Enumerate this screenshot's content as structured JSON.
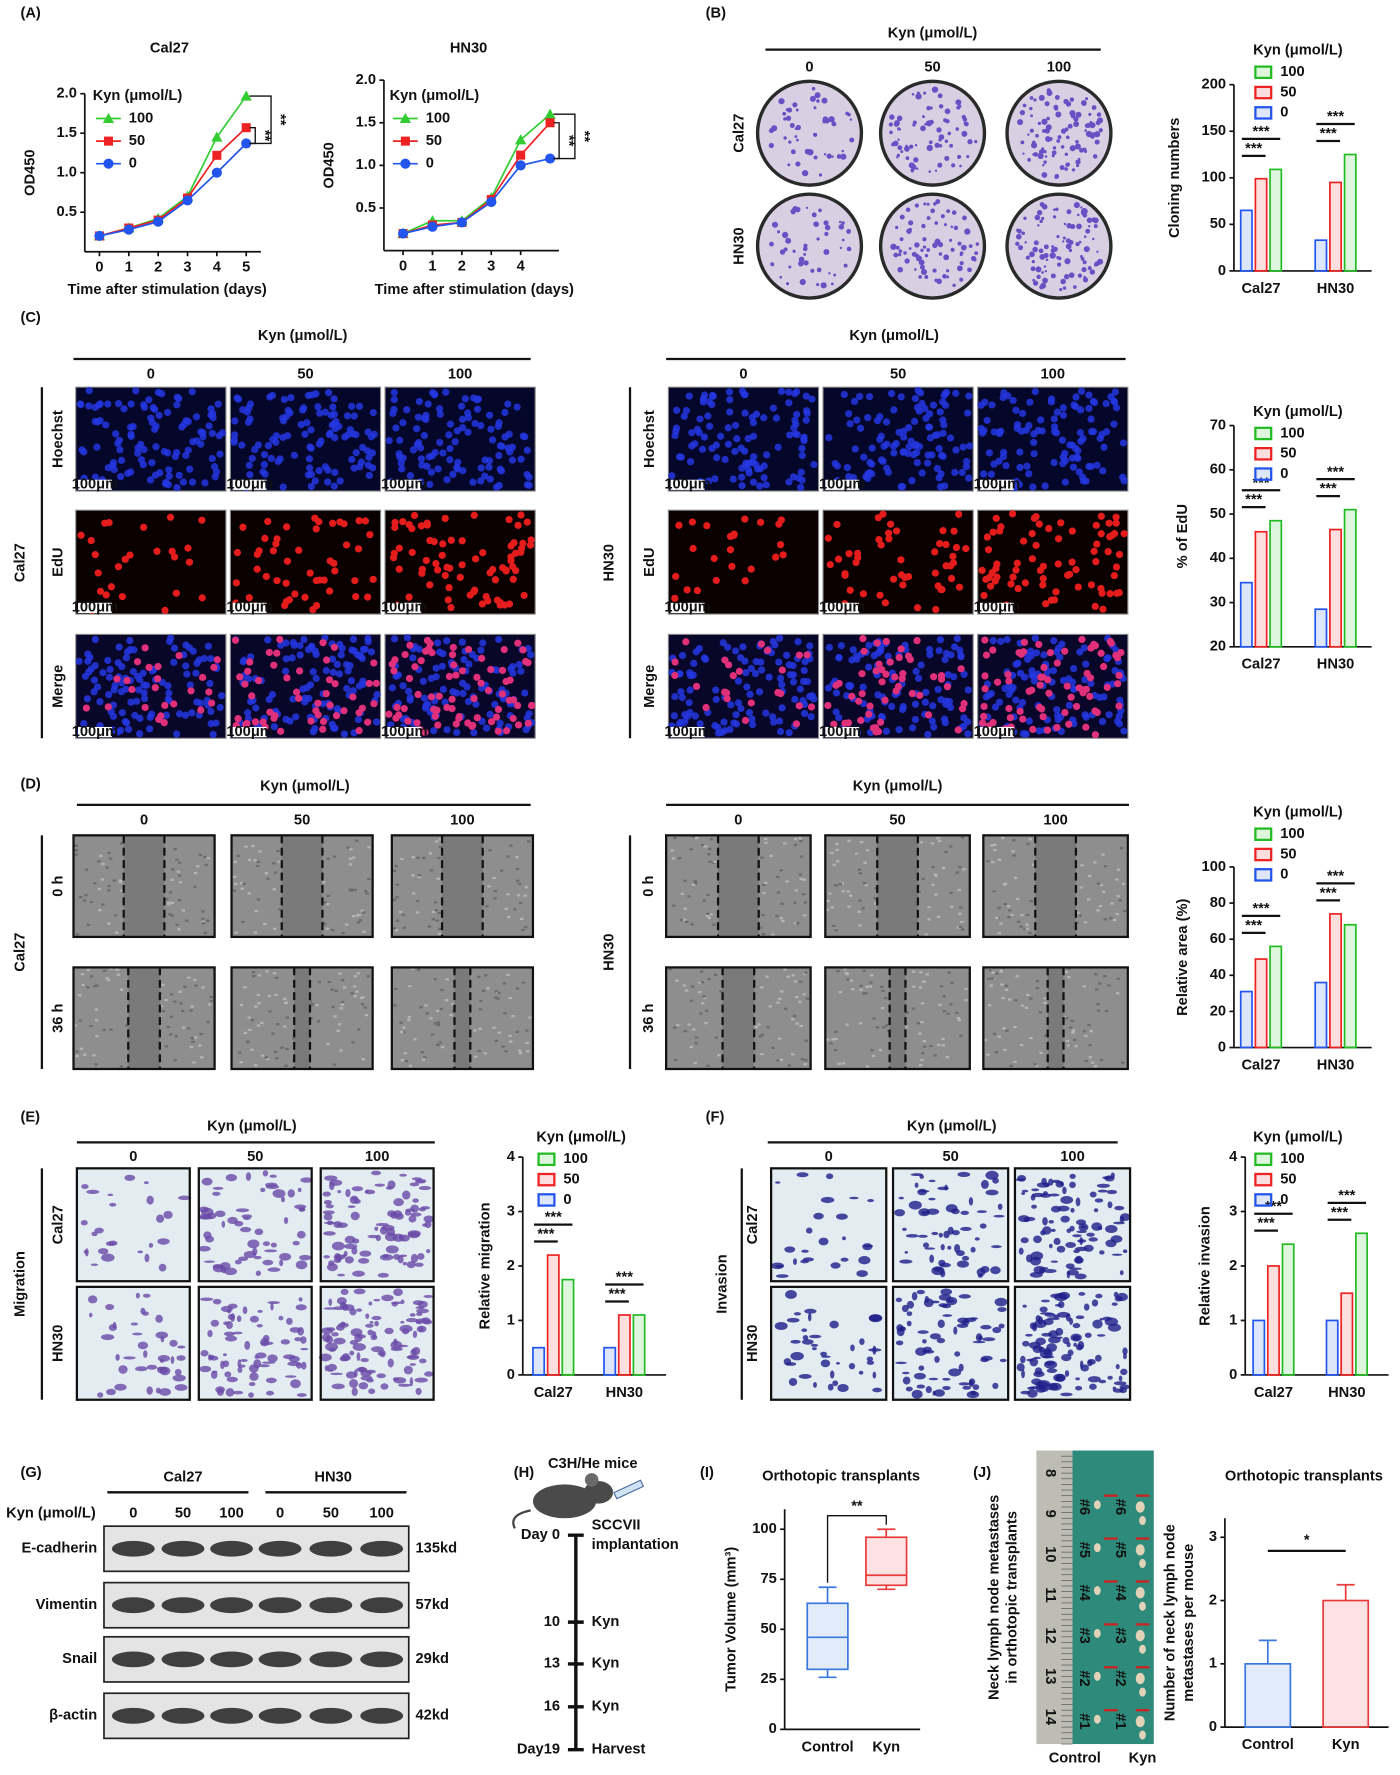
{
  "panel_letters": [
    "(A)",
    "(B)",
    "(C)",
    "(D)",
    "(E)",
    "(F)",
    "(G)",
    "(H)",
    "(I)",
    "(J)"
  ],
  "chart_data": [
    {
      "type": "line",
      "title": "Cal27",
      "ylabel": "OD450",
      "xlabel": "Time after stimulation  (days)",
      "legend_title": "Kyn (μmol/L)",
      "x": [
        0,
        1,
        2,
        3,
        4,
        5
      ],
      "series": [
        {
          "name": "100",
          "color": "#33cc33",
          "marker": "triangle",
          "values": [
            0.2,
            0.3,
            0.42,
            0.7,
            1.45,
            1.97
          ]
        },
        {
          "name": "50",
          "color": "#ee2222",
          "marker": "square",
          "values": [
            0.2,
            0.3,
            0.4,
            0.68,
            1.22,
            1.57
          ]
        },
        {
          "name": "0",
          "color": "#2255ee",
          "marker": "circle",
          "values": [
            0.2,
            0.28,
            0.38,
            0.65,
            1.0,
            1.37
          ]
        }
      ],
      "xlim": [
        -0.5,
        5.5
      ],
      "ylim": [
        0,
        2
      ],
      "xticks": [
        0,
        1,
        2,
        3,
        4,
        5
      ],
      "yticks": [
        0.5,
        {
          "value": 1,
          "label": "1.0"
        },
        1.5,
        {
          "value": 2,
          "label": "2.0"
        }
      ],
      "annotations": [
        "**",
        "**"
      ]
    },
    {
      "type": "line",
      "title": "HN30",
      "ylabel": "OD450",
      "xlabel": "Time after stimulation (days)",
      "legend_title": "Kyn (μmol/L)",
      "x": [
        0,
        1,
        2,
        3,
        4,
        5
      ],
      "series": [
        {
          "name": "100",
          "color": "#33cc33",
          "marker": "triangle",
          "values": [
            0.2,
            0.35,
            0.35,
            0.62,
            1.3,
            1.6
          ]
        },
        {
          "name": "50",
          "color": "#ee2222",
          "marker": "square",
          "values": [
            0.2,
            0.3,
            0.33,
            0.6,
            1.12,
            1.5
          ]
        },
        {
          "name": "0",
          "color": "#2255ee",
          "marker": "circle",
          "values": [
            0.2,
            0.28,
            0.33,
            0.57,
            1.0,
            1.08
          ]
        }
      ],
      "xlim": [
        -0.65,
        5.3
      ],
      "ylim": [
        0,
        2
      ],
      "xticks": [
        0,
        1,
        2,
        3,
        4
      ],
      "yticks": [
        0.5,
        {
          "value": 1,
          "label": "1.0"
        },
        1.5,
        {
          "value": 2,
          "label": "2.0"
        }
      ],
      "annotations": [
        "**",
        "**"
      ]
    },
    {
      "type": "bar",
      "ylabel": "Cloning numbers",
      "legend_title": "Kyn (μmol/L)",
      "categories": [
        "Cal27",
        "HN30"
      ],
      "series": [
        {
          "name": "100",
          "color": "#22bb22",
          "values": [
            109,
            125
          ]
        },
        {
          "name": "50",
          "color": "#ee2222",
          "values": [
            99,
            95
          ]
        },
        {
          "name": "0",
          "color": "#2255ee",
          "values": [
            65,
            33
          ]
        }
      ],
      "ylim": [
        0,
        200
      ],
      "yticks": [
        0,
        50,
        100,
        150,
        200
      ],
      "annotations": [
        "***",
        "***",
        "***",
        "***"
      ]
    },
    {
      "type": "bar",
      "ylabel": "% of EdU",
      "legend_title": "Kyn (μmol/L)",
      "categories": [
        "Cal27",
        "HN30"
      ],
      "series": [
        {
          "name": "100",
          "color": "#22bb22",
          "values": [
            48.5,
            51
          ]
        },
        {
          "name": "50",
          "color": "#ee2222",
          "values": [
            46,
            46.5
          ]
        },
        {
          "name": "0",
          "color": "#2255ee",
          "values": [
            34.5,
            28.5
          ]
        }
      ],
      "ylim": [
        20,
        70
      ],
      "yticks": [
        20,
        30,
        40,
        50,
        60,
        70
      ],
      "annotations": [
        "***",
        "***",
        "***",
        "***"
      ]
    },
    {
      "type": "bar",
      "ylabel": "Relative area (%)",
      "legend_title": "Kyn (μmol/L)",
      "categories": [
        "Cal27",
        "HN30"
      ],
      "series": [
        {
          "name": "100",
          "color": "#22bb22",
          "values": [
            56,
            68
          ]
        },
        {
          "name": "50",
          "color": "#ee2222",
          "values": [
            49,
            74
          ]
        },
        {
          "name": "0",
          "color": "#2255ee",
          "values": [
            31,
            36
          ]
        }
      ],
      "ylim": [
        0,
        100
      ],
      "yticks": [
        0,
        20,
        40,
        60,
        80,
        100
      ],
      "annotations": [
        "***",
        "***",
        "***",
        "***"
      ]
    },
    {
      "type": "bar",
      "ylabel": "Relative migration",
      "legend_title": "Kyn (μmol/L)",
      "categories": [
        "Cal27",
        "HN30"
      ],
      "series": [
        {
          "name": "100",
          "color": "#22bb22",
          "values": [
            1.75,
            1.1
          ]
        },
        {
          "name": "50",
          "color": "#ee2222",
          "values": [
            2.2,
            1.1
          ]
        },
        {
          "name": "0",
          "color": "#2255ee",
          "values": [
            0.5,
            0.5
          ]
        }
      ],
      "ylim": [
        0,
        4
      ],
      "yticks": [
        0,
        1,
        2,
        3,
        4
      ],
      "annotations": [
        "***",
        "***",
        "***",
        "***"
      ]
    },
    {
      "type": "bar",
      "ylabel": "Relative invasion",
      "legend_title": "Kyn (μmol/L)",
      "categories": [
        "Cal27",
        "HN30"
      ],
      "series": [
        {
          "name": "100",
          "color": "#22bb22",
          "values": [
            2.4,
            2.6
          ]
        },
        {
          "name": "50",
          "color": "#ee2222",
          "values": [
            2,
            1.5
          ]
        },
        {
          "name": "0",
          "color": "#2255ee",
          "values": [
            1,
            1
          ]
        }
      ],
      "ylim": [
        0,
        4
      ],
      "yticks": [
        0,
        1,
        2,
        3,
        4
      ],
      "annotations": [
        "***",
        "***",
        "***",
        "***"
      ]
    },
    {
      "type": "box",
      "title": "Orthotopic transplants",
      "ylabel": "Tumor Volume  (mm³)",
      "categories": [
        "Control",
        "Kyn"
      ],
      "colors": [
        "#3a78e0",
        "#e83a3a"
      ],
      "min": [
        26,
        70
      ],
      "q1": [
        30,
        72
      ],
      "median": [
        46,
        77
      ],
      "q3": [
        63,
        96
      ],
      "max": [
        71,
        100
      ],
      "ylim": [
        0,
        110
      ],
      "yticks": [
        0,
        25,
        50,
        75,
        100
      ],
      "annotations": [
        "**"
      ]
    },
    {
      "type": "bar",
      "title": "Orthotopic transplants",
      "ylabel": "Number of neck lymph node metastases per mouse",
      "categories": [
        "Control",
        "Kyn"
      ],
      "colors": [
        "#3a78e0",
        "#e83a3a"
      ],
      "values": [
        1,
        2
      ],
      "errors": [
        0.37,
        0.25
      ],
      "ylim": [
        0,
        3.3
      ],
      "yticks": [
        0,
        1,
        2,
        3
      ],
      "annotations": [
        "*"
      ]
    }
  ],
  "image_grids": [
    {
      "header": "Kyn (μmol/L)",
      "columns": [
        "0",
        "50",
        "100"
      ],
      "rows": [
        "Cal27",
        "HN30"
      ]
    },
    {
      "header": "Kyn (μmol/L)",
      "columns": [
        "0",
        "50",
        "100"
      ],
      "group": "Cal27",
      "rows": [
        "Hoechst",
        "EdU",
        "Merge"
      ],
      "scale_bar": "100μm"
    },
    {
      "header": "Kyn (μmol/L)",
      "columns": [
        "0",
        "50",
        "100"
      ],
      "group": "HN30",
      "rows": [
        "Hoechst",
        "EdU",
        "Merge"
      ],
      "scale_bar": "100μm"
    },
    {
      "header": "Kyn (μmol/L)",
      "columns": [
        "0",
        "50",
        "100"
      ],
      "group": "Cal27",
      "rows": [
        "0 h",
        "36 h"
      ]
    },
    {
      "header": "Kyn (μmol/L)",
      "columns": [
        "0",
        "50",
        "100"
      ],
      "group": "HN30",
      "rows": [
        "0 h",
        "36 h"
      ]
    },
    {
      "header": "Kyn (μmol/L)",
      "columns": [
        "0",
        "50",
        "100"
      ],
      "group": "Migration",
      "rows": [
        "Cal27",
        "HN30"
      ]
    },
    {
      "header": "Kyn (μmol/L)",
      "columns": [
        "0",
        "50",
        "100"
      ],
      "group": "Invasion",
      "rows": [
        "Cal27",
        "HN30"
      ]
    }
  ],
  "western_blot": {
    "cell_lines": [
      "Cal27",
      "HN30"
    ],
    "treatment_label": "Kyn (μmol/L)",
    "lanes": [
      "0",
      "50",
      "100",
      "0",
      "50",
      "100"
    ],
    "rows": [
      {
        "protein": "E-cadherin",
        "size": "135kd"
      },
      {
        "protein": "Vimentin",
        "size": "57kd"
      },
      {
        "protein": "Snail",
        "size": "29kd"
      },
      {
        "protein": "β-actin",
        "size": "42kd"
      }
    ]
  },
  "timeline": {
    "title": "C3H/He mice",
    "days": [
      "Day 0",
      "10",
      "13",
      "16",
      "Day19"
    ],
    "events": [
      "SCCVII implantation",
      "Kyn",
      "Kyn",
      "Kyn",
      "Harvest"
    ]
  },
  "lymph_node_photo": {
    "ylabel": "Neck lymph node metastases in orthotopic transplants",
    "groups": [
      "Control",
      "Kyn"
    ],
    "ruler_marks": [
      "8",
      "9",
      "10",
      "11",
      "12",
      "13",
      "14"
    ],
    "mouse_ids": [
      "#1",
      "#2",
      "#3",
      "#4",
      "#5",
      "#6"
    ]
  }
}
